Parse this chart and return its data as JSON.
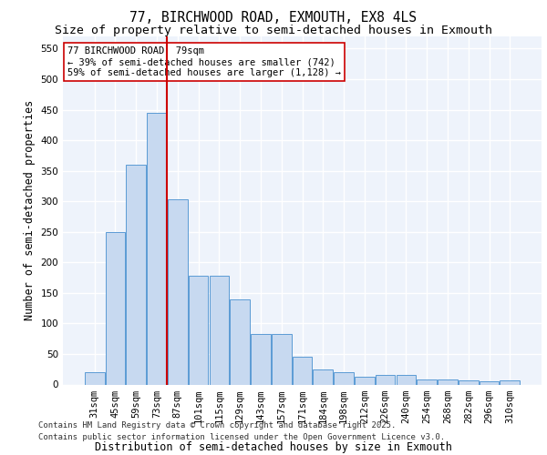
{
  "title": "77, BIRCHWOOD ROAD, EXMOUTH, EX8 4LS",
  "subtitle": "Size of property relative to semi-detached houses in Exmouth",
  "xlabel": "Distribution of semi-detached houses by size in Exmouth",
  "ylabel": "Number of semi-detached properties",
  "categories": [
    "31sqm",
    "45sqm",
    "59sqm",
    "73sqm",
    "87sqm",
    "101sqm",
    "115sqm",
    "129sqm",
    "143sqm",
    "157sqm",
    "171sqm",
    "184sqm",
    "198sqm",
    "212sqm",
    "226sqm",
    "240sqm",
    "254sqm",
    "268sqm",
    "282sqm",
    "296sqm",
    "310sqm"
  ],
  "values": [
    20,
    250,
    360,
    445,
    303,
    178,
    178,
    140,
    83,
    83,
    45,
    25,
    20,
    12,
    16,
    16,
    8,
    8,
    7,
    5,
    6
  ],
  "bar_color": "#c7d9f0",
  "bar_edge_color": "#5b9bd5",
  "highlight_index": 3,
  "highlight_line_color": "#cc0000",
  "annotation_line1": "77 BIRCHWOOD ROAD: 79sqm",
  "annotation_line2": "← 39% of semi-detached houses are smaller (742)",
  "annotation_line3": "59% of semi-detached houses are larger (1,128) →",
  "annotation_box_color": "#ffffff",
  "annotation_box_edge_color": "#cc0000",
  "ylim": [
    0,
    570
  ],
  "yticks": [
    0,
    50,
    100,
    150,
    200,
    250,
    300,
    350,
    400,
    450,
    500,
    550
  ],
  "footer1": "Contains HM Land Registry data © Crown copyright and database right 2025.",
  "footer2": "Contains public sector information licensed under the Open Government Licence v3.0.",
  "bg_color": "#eef3fb",
  "grid_color": "#ffffff",
  "title_fontsize": 10.5,
  "subtitle_fontsize": 9.5,
  "axis_label_fontsize": 8.5,
  "tick_fontsize": 7.5,
  "footer_fontsize": 6.5,
  "annot_fontsize": 7.5
}
